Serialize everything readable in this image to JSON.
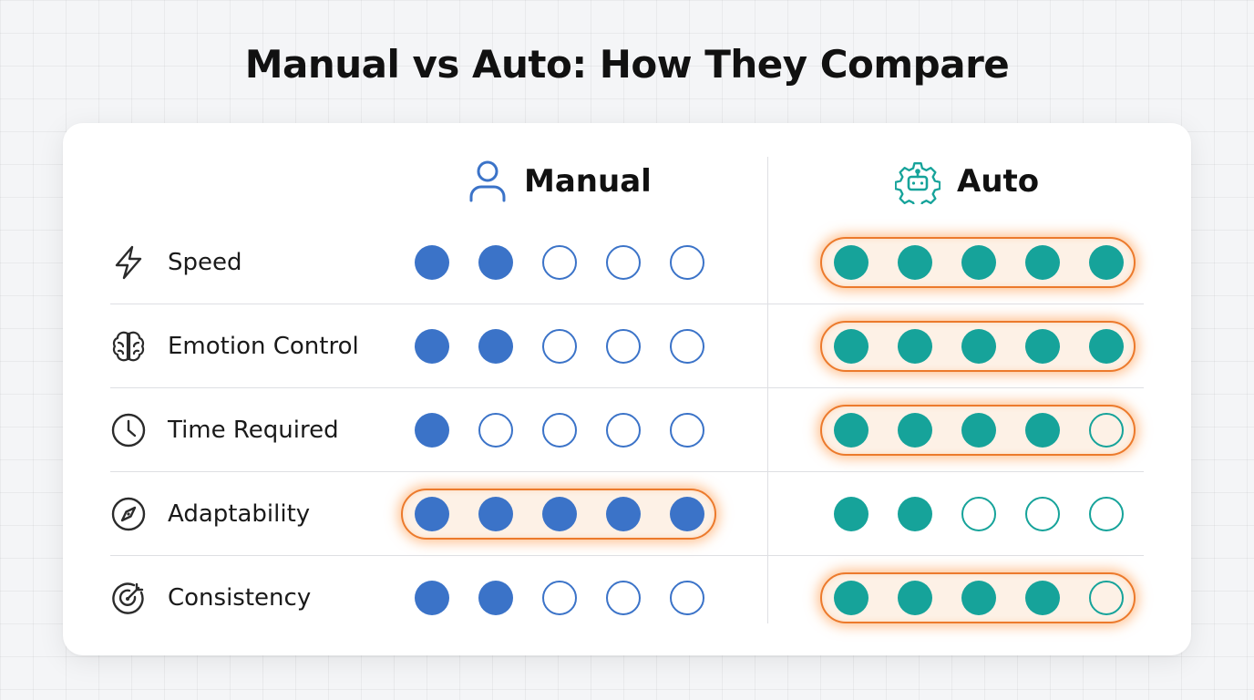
{
  "title": "Manual vs Auto: How They Compare",
  "columns": {
    "manual": {
      "label": "Manual",
      "icon": "user-icon",
      "color": "#3b73c8"
    },
    "auto": {
      "label": "Auto",
      "icon": "robot-gear-icon",
      "color": "#16a39a"
    }
  },
  "highlight_color": "#ec7a2c",
  "max_rating": 5,
  "rows": [
    {
      "label": "Speed",
      "icon": "lightning-icon",
      "manual": 2,
      "auto": 5,
      "highlight": "auto"
    },
    {
      "label": "Emotion Control",
      "icon": "brain-icon",
      "manual": 2,
      "auto": 5,
      "highlight": "auto"
    },
    {
      "label": "Time Required",
      "icon": "clock-icon",
      "manual": 1,
      "auto": 4,
      "highlight": "auto"
    },
    {
      "label": "Adaptability",
      "icon": "compass-icon",
      "manual": 5,
      "auto": 2,
      "highlight": "manual"
    },
    {
      "label": "Consistency",
      "icon": "target-icon",
      "manual": 2,
      "auto": 4,
      "highlight": "auto"
    }
  ]
}
